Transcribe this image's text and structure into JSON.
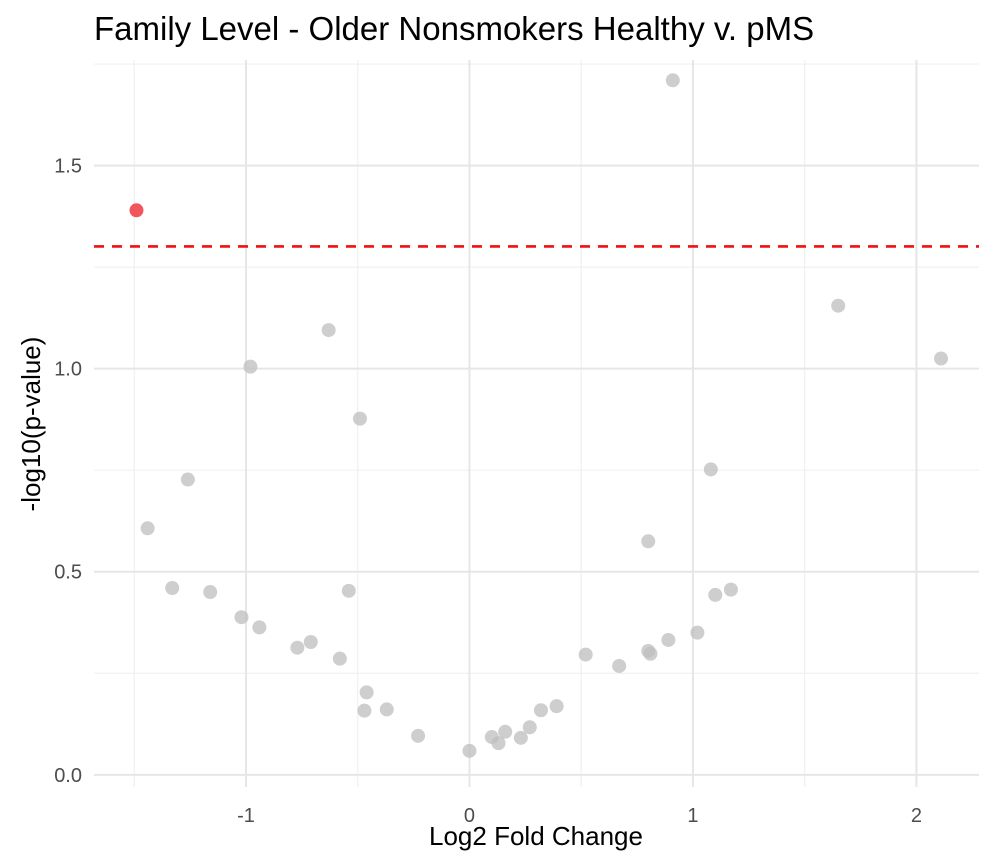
{
  "chart_data": {
    "type": "scatter",
    "title": "Family Level - Older Nonsmokers Healthy v. pMS",
    "xlabel": "Log2 Fold Change",
    "ylabel": "-log10(p-value)",
    "xlim": [
      -1.68,
      2.28
    ],
    "ylim": [
      -0.03,
      1.76
    ],
    "x_ticks": [
      -1,
      0,
      1,
      2
    ],
    "x_tick_labels": [
      "-1",
      "0",
      "1",
      "2"
    ],
    "y_ticks": [
      0,
      0.5,
      1,
      1.5
    ],
    "y_tick_labels": [
      "0.0",
      "0.5",
      "1.0",
      "1.5"
    ],
    "grid": true,
    "legend": "none",
    "threshold": {
      "axis": "y",
      "value": 1.301,
      "style": "dashed",
      "color": "#ee1111"
    },
    "colors": {
      "not_significant": "#bdbdbd",
      "significant": "#f0434b"
    },
    "points": [
      {
        "x": 0.91,
        "y": 1.71,
        "sig": false
      },
      {
        "x": -1.49,
        "y": 1.39,
        "sig": true
      },
      {
        "x": 1.65,
        "y": 1.155,
        "sig": false
      },
      {
        "x": -0.63,
        "y": 1.095,
        "sig": false
      },
      {
        "x": 2.11,
        "y": 1.025,
        "sig": false
      },
      {
        "x": -0.98,
        "y": 1.005,
        "sig": false
      },
      {
        "x": -0.49,
        "y": 0.877,
        "sig": false
      },
      {
        "x": 1.08,
        "y": 0.752,
        "sig": false
      },
      {
        "x": -1.26,
        "y": 0.727,
        "sig": false
      },
      {
        "x": -1.44,
        "y": 0.607,
        "sig": false
      },
      {
        "x": 0.8,
        "y": 0.575,
        "sig": false
      },
      {
        "x": -1.33,
        "y": 0.46,
        "sig": false
      },
      {
        "x": 1.17,
        "y": 0.456,
        "sig": false
      },
      {
        "x": -0.54,
        "y": 0.453,
        "sig": false
      },
      {
        "x": -1.16,
        "y": 0.45,
        "sig": false
      },
      {
        "x": 1.1,
        "y": 0.443,
        "sig": false
      },
      {
        "x": -1.02,
        "y": 0.388,
        "sig": false
      },
      {
        "x": -0.94,
        "y": 0.363,
        "sig": false
      },
      {
        "x": 1.02,
        "y": 0.35,
        "sig": false
      },
      {
        "x": 0.89,
        "y": 0.332,
        "sig": false
      },
      {
        "x": -0.71,
        "y": 0.327,
        "sig": false
      },
      {
        "x": -0.77,
        "y": 0.313,
        "sig": false
      },
      {
        "x": 0.8,
        "y": 0.305,
        "sig": false
      },
      {
        "x": 0.81,
        "y": 0.298,
        "sig": false
      },
      {
        "x": 0.52,
        "y": 0.296,
        "sig": false
      },
      {
        "x": -0.58,
        "y": 0.286,
        "sig": false
      },
      {
        "x": 0.67,
        "y": 0.268,
        "sig": false
      },
      {
        "x": -0.46,
        "y": 0.203,
        "sig": false
      },
      {
        "x": 0.39,
        "y": 0.169,
        "sig": false
      },
      {
        "x": -0.37,
        "y": 0.161,
        "sig": false
      },
      {
        "x": 0.32,
        "y": 0.159,
        "sig": false
      },
      {
        "x": -0.47,
        "y": 0.158,
        "sig": false
      },
      {
        "x": 0.27,
        "y": 0.117,
        "sig": false
      },
      {
        "x": 0.16,
        "y": 0.106,
        "sig": false
      },
      {
        "x": -0.23,
        "y": 0.096,
        "sig": false
      },
      {
        "x": 0.1,
        "y": 0.093,
        "sig": false
      },
      {
        "x": 0.23,
        "y": 0.091,
        "sig": false
      },
      {
        "x": 0.13,
        "y": 0.078,
        "sig": false
      },
      {
        "x": 0.0,
        "y": 0.059,
        "sig": false
      }
    ]
  }
}
